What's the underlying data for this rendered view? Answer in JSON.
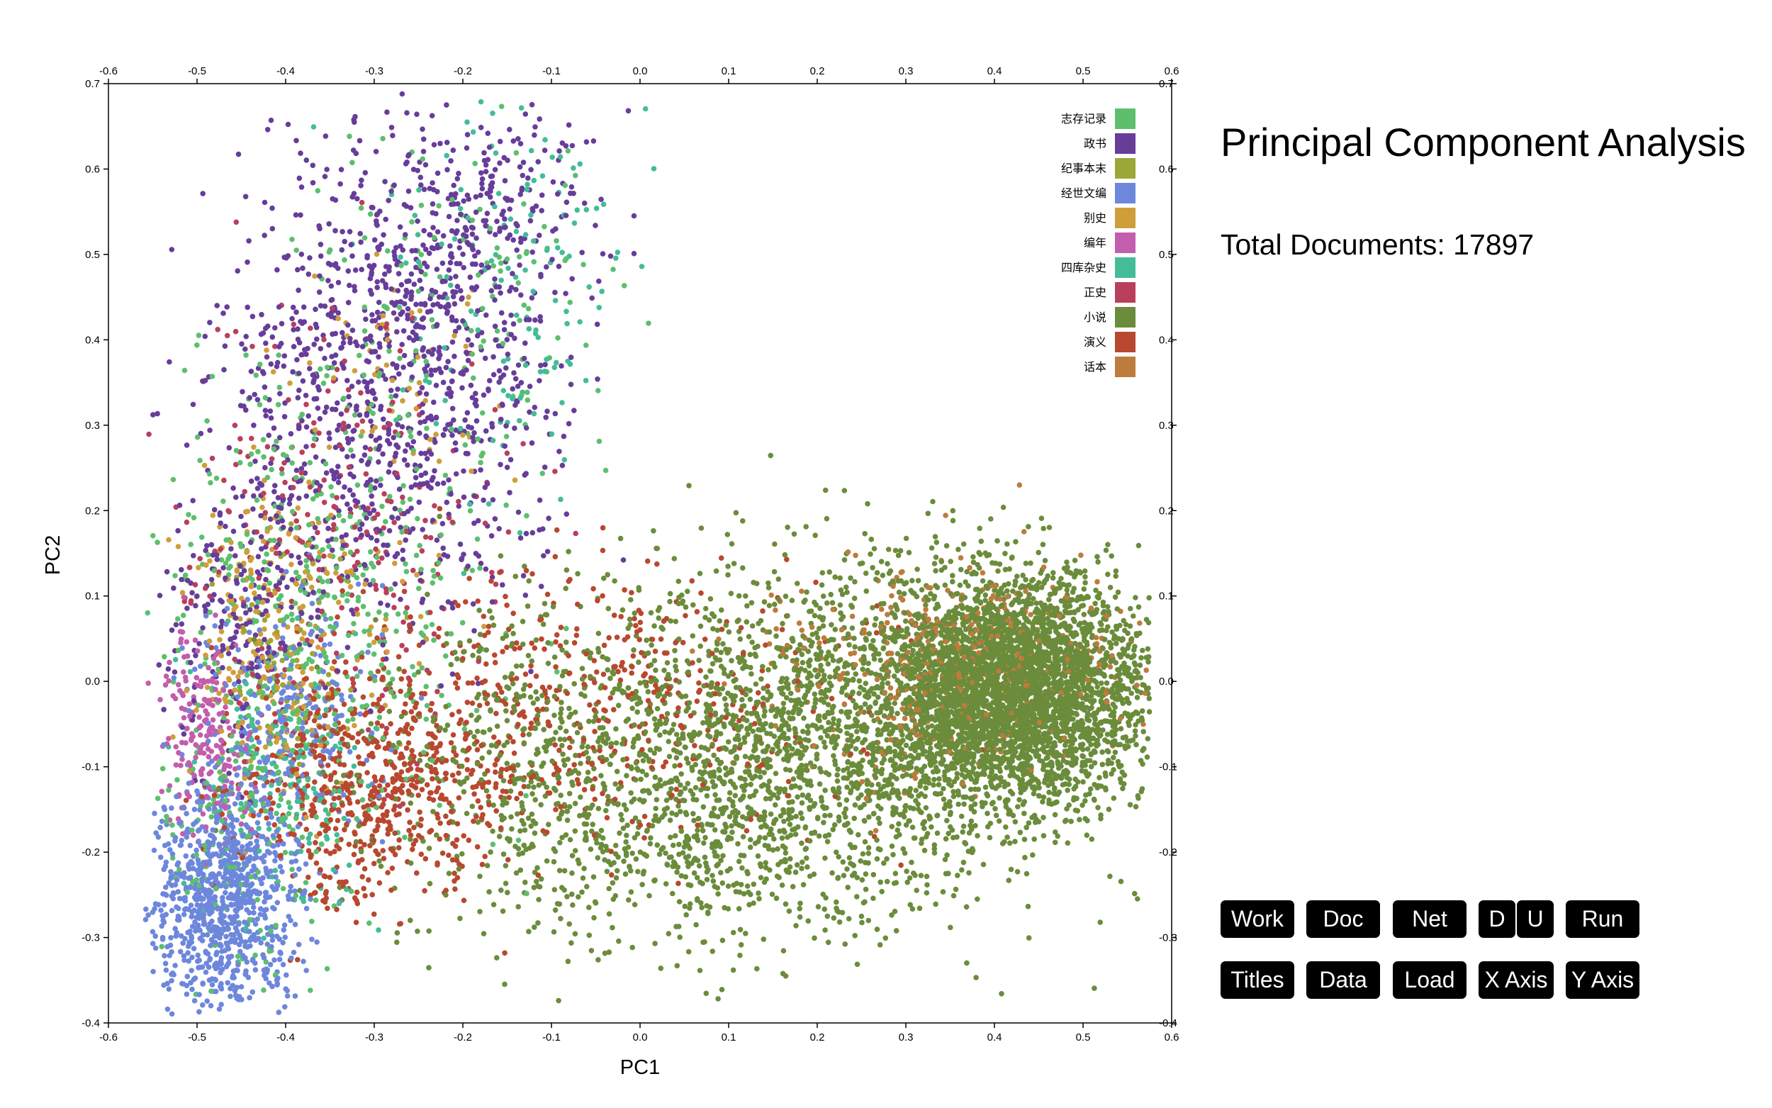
{
  "header": {
    "title": "Principal Component Analysis",
    "total_label": "Total Documents:",
    "total_value": "17897"
  },
  "buttons": {
    "work": "Work",
    "doc": "Doc",
    "net": "Net",
    "d": "D",
    "u": "U",
    "run": "Run",
    "titles": "Titles",
    "data": "Data",
    "load": "Load",
    "x_axis": "X Axis",
    "y_axis": "Y Axis"
  },
  "chart_data": {
    "type": "scatter",
    "title": "",
    "xlabel": "PC1",
    "ylabel": "PC2",
    "xlim": [
      -0.6,
      0.6
    ],
    "ylim": [
      -0.4,
      0.7
    ],
    "xticks": [
      "-0.6",
      "-0.5",
      "-0.4",
      "-0.3",
      "-0.2",
      "-0.1",
      "0.0",
      "0.1",
      "0.2",
      "0.3",
      "0.4",
      "0.5",
      "0.6"
    ],
    "yticks": [
      "0.7",
      "0.6",
      "0.5",
      "0.4",
      "0.3",
      "0.2",
      "0.1",
      "0.0",
      "-0.1",
      "-0.2",
      "-0.3",
      "-0.4"
    ],
    "grid": false,
    "legend_position": "top-right (inside)",
    "series": [
      {
        "name": "志存记录",
        "color": "#5dbf6e",
        "clusters": [
          [
            -0.35,
            0.1,
            0.09,
            0.15,
            480
          ],
          [
            -0.2,
            0.45,
            0.08,
            0.12,
            120
          ],
          [
            -0.45,
            -0.18,
            0.05,
            0.08,
            160
          ]
        ]
      },
      {
        "name": "政书",
        "color": "#673d9a",
        "clusters": [
          [
            -0.28,
            0.35,
            0.09,
            0.14,
            1000
          ],
          [
            -0.18,
            0.55,
            0.06,
            0.08,
            250
          ],
          [
            -0.45,
            0.08,
            0.04,
            0.08,
            200
          ]
        ]
      },
      {
        "name": "纪事本末",
        "color": "#9ba736",
        "clusters": [
          [
            -0.4,
            0.05,
            0.04,
            0.06,
            60
          ]
        ]
      },
      {
        "name": "经世文编",
        "color": "#6d87dc",
        "clusters": [
          [
            -0.47,
            -0.26,
            0.04,
            0.07,
            900
          ],
          [
            -0.4,
            -0.05,
            0.05,
            0.07,
            250
          ]
        ]
      },
      {
        "name": "别史",
        "color": "#cf9e3a",
        "clusters": [
          [
            -0.41,
            0.04,
            0.05,
            0.09,
            250
          ],
          [
            -0.28,
            0.3,
            0.07,
            0.12,
            70
          ]
        ]
      },
      {
        "name": "编年",
        "color": "#c35dad",
        "clusters": [
          [
            -0.49,
            -0.06,
            0.025,
            0.06,
            200
          ]
        ]
      },
      {
        "name": "四库杂史",
        "color": "#44bc97",
        "clusters": [
          [
            -0.15,
            0.45,
            0.08,
            0.12,
            130
          ],
          [
            -0.4,
            -0.12,
            0.05,
            0.08,
            140
          ]
        ]
      },
      {
        "name": "正史",
        "color": "#b8405d",
        "clusters": [
          [
            -0.35,
            0.18,
            0.09,
            0.12,
            250
          ]
        ]
      },
      {
        "name": "小说",
        "color": "#6b8c3b",
        "clusters": [
          [
            0.42,
            -0.01,
            0.075,
            0.065,
            3800
          ],
          [
            0.2,
            -0.06,
            0.13,
            0.1,
            1700
          ],
          [
            -0.08,
            -0.1,
            0.12,
            0.1,
            700
          ],
          [
            0.1,
            -0.2,
            0.12,
            0.06,
            300
          ]
        ]
      },
      {
        "name": "演义",
        "color": "#b8482f",
        "clusters": [
          [
            -0.3,
            -0.12,
            0.08,
            0.07,
            650
          ],
          [
            -0.05,
            -0.02,
            0.14,
            0.08,
            450
          ]
        ]
      },
      {
        "name": "话本",
        "color": "#bd7b3e",
        "clusters": [
          [
            0.35,
            0.02,
            0.1,
            0.06,
            450
          ]
        ]
      }
    ]
  }
}
